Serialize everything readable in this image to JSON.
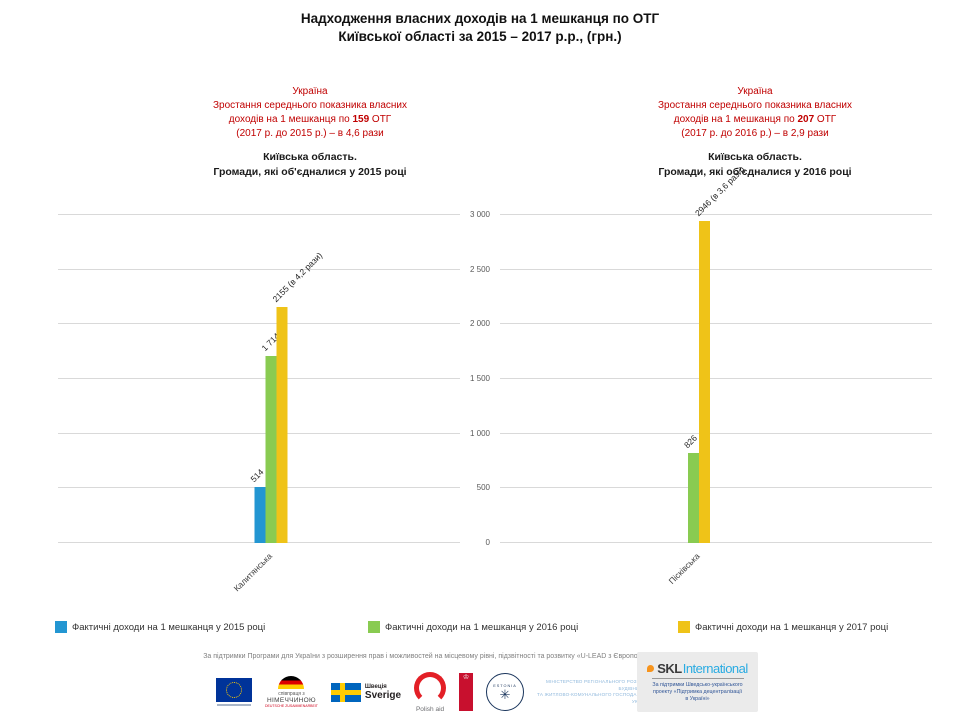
{
  "slide": {
    "title_line1": "Надходження власних доходів на 1 мешканця по ОТГ",
    "title_line2": "Київської області за 2015 – 2017 р.р., (грн.)"
  },
  "panels": {
    "left": {
      "annotation": {
        "country": "Україна",
        "line2": "Зростання середнього показника власних",
        "line3_prefix": "доходів на 1 мешканця по ",
        "line3_bold": "159",
        "line3_suffix": " ОТГ",
        "line4": "(2017 р. до 2015 р.) – в 4,6 рази"
      },
      "heading_line1": "Київська  область.",
      "heading_line2": "Громади, які  об'єдналися  у 2015 році"
    },
    "right": {
      "annotation": {
        "country": "Україна",
        "line2": "Зростання середнього показника власних",
        "line3_prefix": "доходів на 1 мешканця по ",
        "line3_bold": "207",
        "line3_suffix": " ОТГ",
        "line4": "(2017 р. до 2016 р.) – в 2,9 рази"
      },
      "heading_line1": "Київська  область.",
      "heading_line2": "Громади, які  об'єдналися  у 2016 році"
    }
  },
  "chart_data": [
    {
      "type": "bar",
      "title": "Київська область. Громади, які об'єдналися у 2015 році",
      "categories": [
        "Калитянська"
      ],
      "series": [
        {
          "name": "Фактичні доходи на 1 мешканця у 2015 році",
          "color": "#2396D2",
          "values": [
            514
          ],
          "data_labels": [
            "514"
          ]
        },
        {
          "name": "Фактичні доходи на 1 мешканця у 2016 році",
          "color": "#89CB51",
          "values": [
            1714
          ],
          "data_labels": [
            "1 714"
          ]
        },
        {
          "name": "Фактичні доходи на 1 мешканця у 2017 році",
          "color": "#EFC318",
          "values": [
            2155
          ],
          "data_labels": [
            "2155 (в 4,2 рази)"
          ]
        }
      ],
      "ylim": [
        0,
        3000
      ],
      "yticks": [
        0,
        500,
        1000,
        1500,
        2000,
        2500,
        3000
      ],
      "ytick_labels": [
        "0",
        "500",
        "1 000",
        "1 500",
        "2 000",
        "2 500",
        "3 000"
      ],
      "ytick_labels_visible": false,
      "grid": true,
      "legend_position": "bottom-shared",
      "bar_group_center_pct": 53
    },
    {
      "type": "bar",
      "title": "Київська область. Громади, які об'єдналися у 2016 році",
      "categories": [
        "Пісківська"
      ],
      "series": [
        {
          "name": "Фактичні доходи на 1 мешканця у 2016 році",
          "color": "#89CB51",
          "values": [
            826
          ],
          "data_labels": [
            "826"
          ]
        },
        {
          "name": "Фактичні доходи на 1 мешканця у 2017 році",
          "color": "#EFC318",
          "values": [
            2946
          ],
          "data_labels": [
            "2946 (в 3,6 рази)"
          ]
        }
      ],
      "ylim": [
        0,
        3000
      ],
      "yticks": [
        0,
        500,
        1000,
        1500,
        2000,
        2500,
        3000
      ],
      "ytick_labels": [
        "0",
        "500",
        "1 000",
        "1 500",
        "2 000",
        "2 500",
        "3 000"
      ],
      "ytick_labels_visible": true,
      "grid": true,
      "legend_position": "bottom-shared",
      "bar_group_center_pct": 46
    }
  ],
  "legend": {
    "items": [
      {
        "label": "Фактичні доходи на 1 мешканця у 2015 році",
        "color": "#2396D2"
      },
      {
        "label": "Фактичні доходи на 1 мешканця у 2016 році",
        "color": "#89CB51"
      },
      {
        "label": "Фактичні доходи на 1 мешканця у 2017 році",
        "color": "#EFC318"
      }
    ]
  },
  "footer": {
    "credit": "За підтримки Програми для України з розширення прав і можливостей на місцевому рівні, підзвітності та розвитку «U-LEAD з Європою»",
    "logos": {
      "eu": {
        "icon": "eu-flag-icon"
      },
      "germany": {
        "icon": "germany-arc-flag-icon",
        "small": "співпраця з",
        "name": "НІМЕЧЧИНОЮ",
        "sub": "DEUTSCHE ZUSAMMENARBEIT"
      },
      "sweden": {
        "icon": "sweden-flag-icon",
        "small": "Швеція",
        "name": "Sverige"
      },
      "polish_aid": {
        "icon": "polish-aid-ring-icon",
        "label": "Polish aid"
      },
      "red_banner": {
        "icon": "red-banner-emblem-icon",
        "emblem": "♔"
      },
      "estonia": {
        "icon": "estonia-circle-icon",
        "label": "ESTONIA",
        "mark": "✳"
      },
      "ministry": {
        "icon": "ministry-chevron-icon",
        "lines": [
          "МІНІСТЕРСТВО РЕГІОНАЛЬНОГО РОЗВИТКУ",
          "БУДІВНИЦТВА",
          "ТА ЖИТЛОВО-КОМУНАЛЬНОГО ГОСПОДАРСТВА",
          "УКРАЇНИ"
        ]
      },
      "skl": {
        "icon": "skl-pin-icon",
        "brand_skl": "SKL",
        "brand_intl": "International",
        "sub1": "За підтримки Шведсько-українського",
        "sub2": "проекту «Підтримка децентралізації",
        "sub3": "в Україні»"
      }
    }
  }
}
